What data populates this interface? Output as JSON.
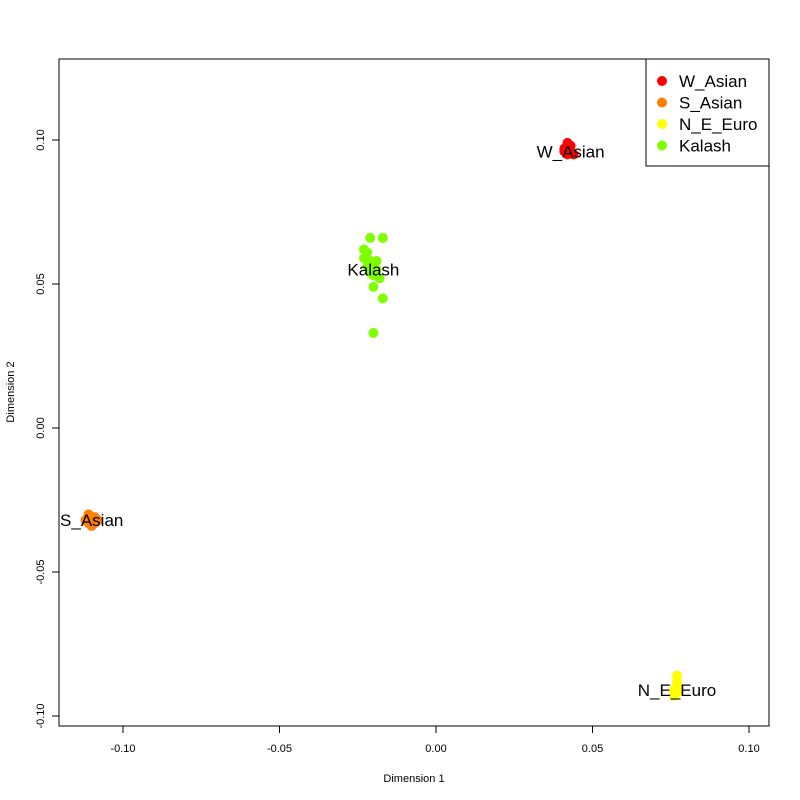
{
  "chart_data": {
    "type": "scatter",
    "title": "",
    "xlabel": "Dimension 1",
    "ylabel": "Dimension 2",
    "xlim": [
      -0.12,
      0.107
    ],
    "ylim": [
      -0.104,
      0.128
    ],
    "x_ticks": [
      "-0.10",
      "-0.05",
      "0.00",
      "0.05",
      "0.10"
    ],
    "x_tick_values": [
      -0.1,
      -0.05,
      0.0,
      0.05,
      0.1
    ],
    "y_ticks": [
      "-0.10",
      "-0.05",
      "0.00",
      "0.05",
      "0.10"
    ],
    "y_tick_values": [
      -0.1,
      -0.05,
      0.0,
      0.05,
      0.1
    ],
    "grid": false,
    "legend_position": "top-right",
    "series": [
      {
        "name": "W_Asian",
        "color": "#ff0000",
        "label_pos": [
          0.043,
          0.096
        ],
        "points": [
          [
            0.041,
            0.097
          ],
          [
            0.042,
            0.099
          ],
          [
            0.043,
            0.098
          ],
          [
            0.042,
            0.095
          ],
          [
            0.043,
            0.096
          ],
          [
            0.041,
            0.096
          ],
          [
            0.044,
            0.095
          ],
          [
            0.042,
            0.097
          ]
        ]
      },
      {
        "name": "S_Asian",
        "color": "#ff7f00",
        "label_pos": [
          -0.11,
          -0.032
        ],
        "points": [
          [
            -0.111,
            -0.03
          ],
          [
            -0.11,
            -0.032
          ],
          [
            -0.109,
            -0.031
          ],
          [
            -0.111,
            -0.033
          ],
          [
            -0.11,
            -0.034
          ],
          [
            -0.108,
            -0.032
          ],
          [
            -0.112,
            -0.032
          ],
          [
            -0.109,
            -0.033
          ]
        ]
      },
      {
        "name": "N_E_Euro",
        "color": "#ffff00",
        "label_pos": [
          0.077,
          -0.091
        ],
        "points": [
          [
            0.077,
            -0.086
          ],
          [
            0.077,
            -0.088
          ],
          [
            0.077,
            -0.09
          ],
          [
            0.076,
            -0.091
          ],
          [
            0.077,
            -0.092
          ],
          [
            0.076,
            -0.093
          ],
          [
            0.077,
            -0.089
          ]
        ]
      },
      {
        "name": "Kalash",
        "color": "#7fff00",
        "label_pos": [
          -0.02,
          0.055
        ],
        "points": [
          [
            -0.021,
            0.066
          ],
          [
            -0.017,
            0.066
          ],
          [
            -0.023,
            0.062
          ],
          [
            -0.022,
            0.061
          ],
          [
            -0.023,
            0.059
          ],
          [
            -0.021,
            0.058
          ],
          [
            -0.019,
            0.058
          ],
          [
            -0.02,
            0.057
          ],
          [
            -0.022,
            0.056
          ],
          [
            -0.019,
            0.055
          ],
          [
            -0.021,
            0.054
          ],
          [
            -0.02,
            0.053
          ],
          [
            -0.018,
            0.052
          ],
          [
            -0.02,
            0.049
          ],
          [
            -0.017,
            0.045
          ],
          [
            -0.02,
            0.033
          ]
        ]
      }
    ]
  },
  "legend": {
    "items": [
      {
        "label": "W_Asian",
        "color": "#ff0000"
      },
      {
        "label": "S_Asian",
        "color": "#ff7f00"
      },
      {
        "label": "N_E_Euro",
        "color": "#ffff00"
      },
      {
        "label": "Kalash",
        "color": "#7fff00"
      }
    ]
  }
}
